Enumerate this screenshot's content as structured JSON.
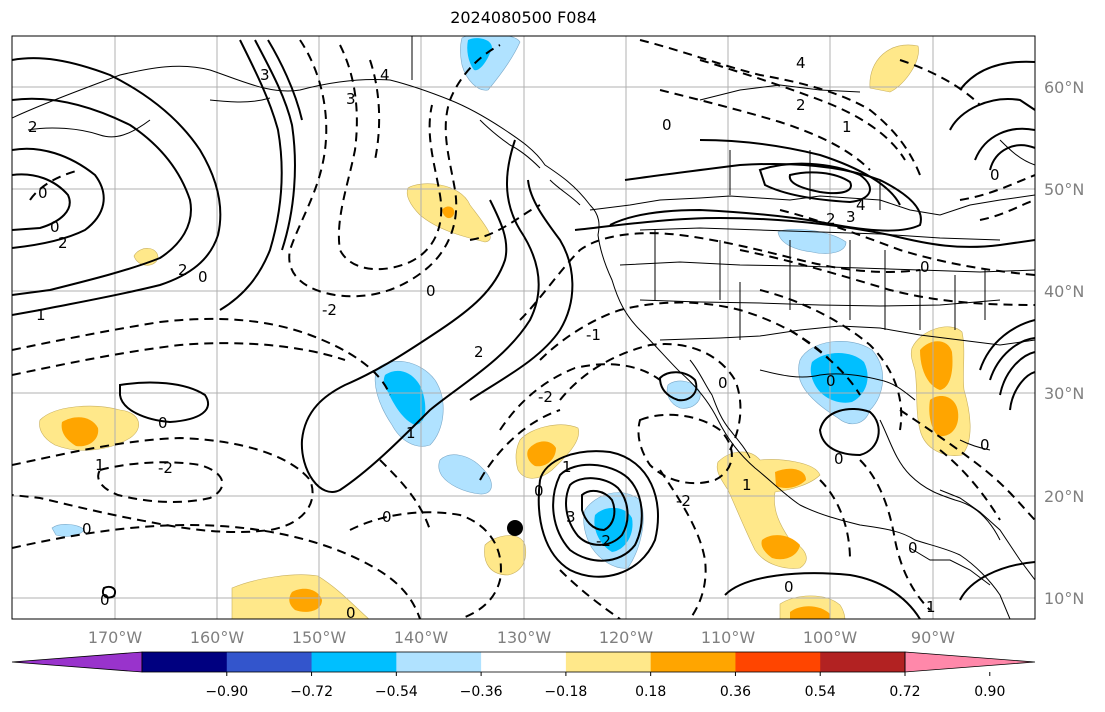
{
  "title": "2024080500 F084",
  "map": {
    "lon_labels": [
      "170°W",
      "160°W",
      "150°W",
      "140°W",
      "130°W",
      "120°W",
      "110°W",
      "100°W",
      "90°W"
    ],
    "lat_labels": [
      "60°N",
      "50°N",
      "40°N",
      "30°N",
      "20°N",
      "10°N"
    ]
  },
  "colorbar": {
    "tick_labels": [
      "−0.90",
      "−0.72",
      "−0.54",
      "−0.36",
      "−0.18",
      "0.18",
      "0.36",
      "0.54",
      "0.72",
      "0.90"
    ],
    "colors": [
      "#9933cc",
      "#000080",
      "#3355cc",
      "#00bfff",
      "#b0e2ff",
      "#ffffff",
      "#ffe88a",
      "#ffa500",
      "#ff4500",
      "#b22222",
      "#ff88aa"
    ]
  },
  "contour_labels": [
    "0",
    "2",
    "1",
    "3",
    "4",
    "-2",
    "-1"
  ]
}
